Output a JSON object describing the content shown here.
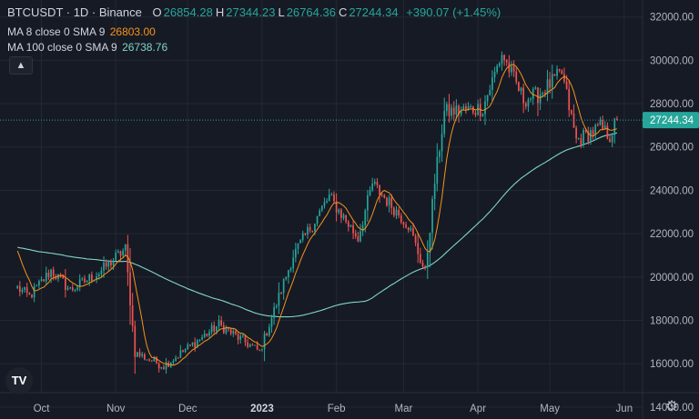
{
  "legend": {
    "symbol": "BTCUSDT · 1D · Binance",
    "ohlc": [
      {
        "label": "O",
        "value": "26854.28"
      },
      {
        "label": "H",
        "value": "27344.23"
      },
      {
        "label": "L",
        "value": "26764.36"
      },
      {
        "label": "C",
        "value": "27244.34"
      }
    ],
    "change": "+390.07 (+1.45%)",
    "ma8_label": "MA 8 close 0 SMA 9",
    "ma8_value": "26803.00",
    "ma100_label": "MA 100 close 0 SMA 9",
    "ma100_value": "26738.76",
    "collapse_icon": "▲"
  },
  "price_tag": "27244.34",
  "colors": {
    "background": "#161a25",
    "up": "#26a69a",
    "down": "#ef5350",
    "ma8": "#f7931a",
    "ma100": "#7fd6c4",
    "text": "#d1d4dc",
    "price_tag": "#26a69a"
  },
  "chart_data": {
    "type": "candlestick",
    "y_ticks": [
      "32000.00",
      "30000.00",
      "28000.00",
      "26000.00",
      "24000.00",
      "22000.00",
      "20000.00",
      "18000.00",
      "16000.00",
      "14000.00"
    ],
    "x_ticks": [
      "Oct",
      "Nov",
      "Dec",
      "2023",
      "Feb",
      "Mar",
      "Apr",
      "May",
      "Jun"
    ],
    "ylim": [
      13700,
      32700
    ],
    "last_close": 27244.34,
    "key_points": [
      [
        "Sep 21",
        19500
      ],
      [
        "Sep 26",
        19100
      ],
      [
        "Oct 5",
        20300
      ],
      [
        "Oct 13",
        19400
      ],
      [
        "Oct 25",
        20200
      ],
      [
        "Nov 5",
        21300
      ],
      [
        "Nov 9",
        16500
      ],
      [
        "Nov 21",
        15900
      ],
      [
        "Dec 14",
        17800
      ],
      [
        "Dec 31",
        16550
      ],
      [
        "Jan 14",
        21000
      ],
      [
        "Jan 29",
        23700
      ],
      [
        "Feb 10",
        21800
      ],
      [
        "Feb 16",
        24300
      ],
      [
        "Mar 3",
        22400
      ],
      [
        "Mar 10",
        20200
      ],
      [
        "Mar 14",
        24400
      ],
      [
        "Mar 18",
        27600
      ],
      [
        "Apr 3",
        27800
      ],
      [
        "Apr 11",
        30300
      ],
      [
        "Apr 20",
        28200
      ],
      [
        "Apr 26",
        28400
      ],
      [
        "May 6",
        29400
      ],
      [
        "May 12",
        26300
      ],
      [
        "May 22",
        26900
      ],
      [
        "May 26",
        26500
      ],
      [
        "May 29",
        27244.34
      ]
    ]
  },
  "icons": {
    "logo": "tradingview-logo-icon",
    "settings": "gear-icon"
  }
}
